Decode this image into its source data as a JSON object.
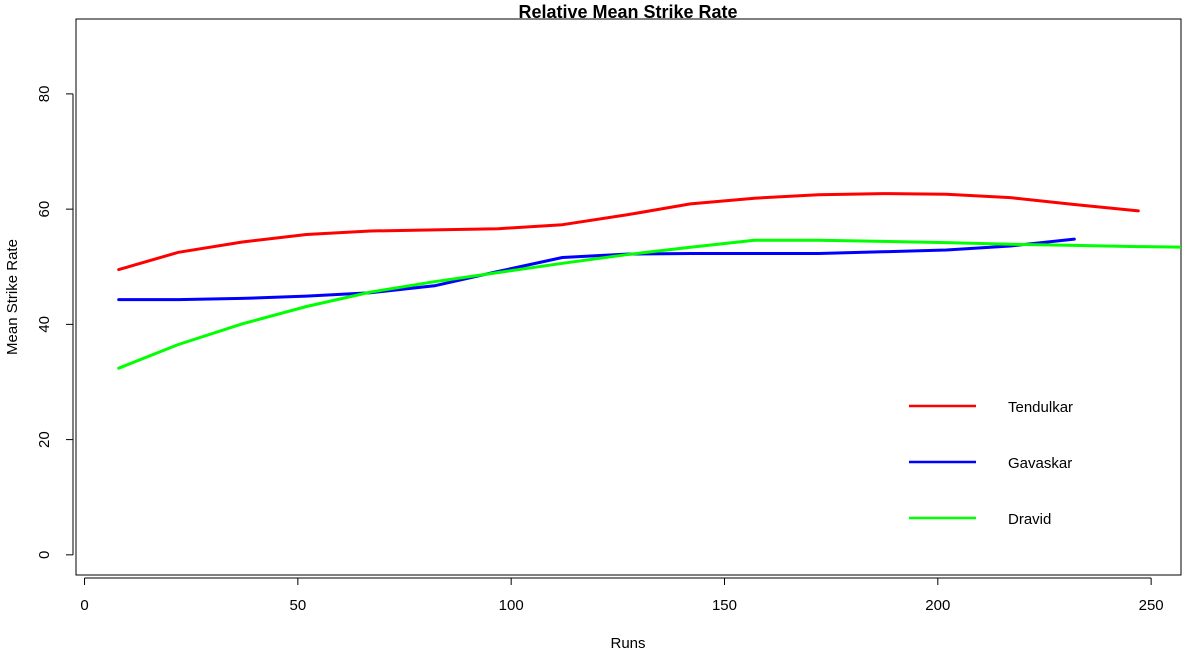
{
  "chart_data": {
    "type": "line",
    "title": "Relative Mean Strike Rate",
    "xlabel": "Runs",
    "ylabel": "Mean Strike Rate",
    "xlim": [
      -2,
      257
    ],
    "ylim": [
      -3.5,
      93
    ],
    "xticks": [
      0,
      50,
      100,
      150,
      200,
      250
    ],
    "yticks": [
      0,
      20,
      40,
      60,
      80
    ],
    "grid": false,
    "legend_position": "bottom-right",
    "series": [
      {
        "name": "Tendulkar",
        "color": "#ff0000",
        "x": [
          8,
          22,
          37,
          52,
          67,
          82,
          97,
          112,
          127,
          142,
          157,
          172,
          187,
          202,
          217,
          232,
          247
        ],
        "y": [
          49.5,
          52.5,
          54.3,
          55.6,
          56.2,
          56.4,
          56.6,
          57.3,
          59.0,
          60.9,
          61.9,
          62.5,
          62.7,
          62.6,
          62.0,
          60.8,
          59.7
        ]
      },
      {
        "name": "Gavaskar",
        "color": "#0000ff",
        "x": [
          8,
          22,
          37,
          52,
          67,
          82,
          97,
          112,
          127,
          142,
          157,
          172,
          187,
          202,
          217,
          232
        ],
        "y": [
          44.3,
          44.3,
          44.5,
          44.9,
          45.5,
          46.7,
          49.2,
          51.6,
          52.2,
          52.3,
          52.3,
          52.3,
          52.6,
          52.9,
          53.6,
          54.8
        ]
      },
      {
        "name": "Dravid",
        "color": "#00ff00",
        "x": [
          8,
          22,
          37,
          52,
          67,
          82,
          97,
          112,
          127,
          142,
          157,
          172,
          187,
          202,
          217,
          232,
          247,
          258
        ],
        "y": [
          32.4,
          36.5,
          40.1,
          43.1,
          45.6,
          47.4,
          49.0,
          50.6,
          52.1,
          53.4,
          54.6,
          54.6,
          54.4,
          54.2,
          53.9,
          53.7,
          53.5,
          53.4
        ]
      }
    ]
  }
}
